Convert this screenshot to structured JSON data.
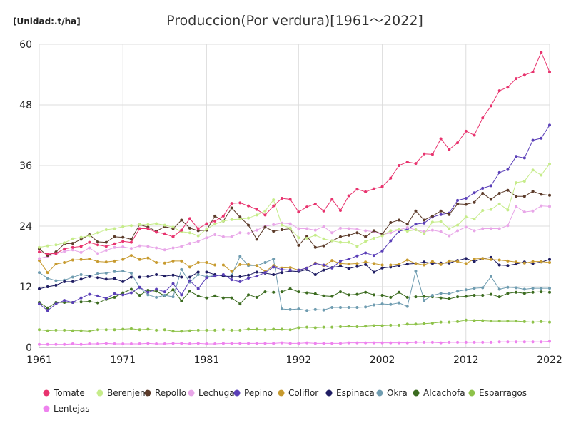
{
  "chart_data": {
    "type": "line",
    "title": "Produccion(Por verdura)[1961～2022]",
    "unit_label": "[Unidad:.t/ha]",
    "xlabel": "",
    "ylabel": "",
    "xlim": [
      1961,
      2022
    ],
    "ylim": [
      0,
      60
    ],
    "x_ticks": [
      1961,
      1971,
      1981,
      1992,
      2002,
      2012,
      2022
    ],
    "y_ticks": [
      0,
      12,
      24,
      36,
      48,
      60
    ],
    "grid": true,
    "legend_position": "bottom",
    "x": [
      1961,
      1962,
      1963,
      1964,
      1965,
      1966,
      1967,
      1968,
      1969,
      1970,
      1971,
      1972,
      1973,
      1974,
      1975,
      1976,
      1977,
      1978,
      1979,
      1980,
      1981,
      1982,
      1983,
      1984,
      1985,
      1986,
      1987,
      1988,
      1989,
      1990,
      1991,
      1992,
      1993,
      1994,
      1995,
      1996,
      1997,
      1998,
      1999,
      2000,
      2001,
      2002,
      2003,
      2004,
      2005,
      2006,
      2007,
      2008,
      2009,
      2010,
      2011,
      2012,
      2013,
      2014,
      2015,
      2016,
      2017,
      2018,
      2019,
      2020,
      2021,
      2022
    ],
    "series": [
      {
        "name": "Tomate",
        "color": "#e8336e",
        "values": [
          18.9,
          18.5,
          18.6,
          19.5,
          19.8,
          20.0,
          20.8,
          20.3,
          20.0,
          20.5,
          21.0,
          20.8,
          23.5,
          23.5,
          22.8,
          22.5,
          21.9,
          23.2,
          25.5,
          23.5,
          24.5,
          25.0,
          26.0,
          28.5,
          28.6,
          28.0,
          27.3,
          26.2,
          28.0,
          29.5,
          29.3,
          26.8,
          27.8,
          28.4,
          27.0,
          29.3,
          27.1,
          30.0,
          31.3,
          30.8,
          31.4,
          31.8,
          33.5,
          36.0,
          36.7,
          36.4,
          38.3,
          38.2,
          41.3,
          39.2,
          40.5,
          42.8,
          42.0,
          45.4,
          47.8,
          50.8,
          51.5,
          53.2,
          53.9,
          54.5,
          58.4,
          54.5
        ]
      },
      {
        "name": "Berenjena",
        "color": "#c6ec8a",
        "values": [
          19.8,
          20.1,
          20.3,
          20.7,
          21.5,
          21.8,
          22.1,
          22.7,
          23.3,
          23.5,
          23.9,
          24.1,
          24.3,
          24.3,
          24.5,
          24.2,
          23.8,
          22.9,
          22.7,
          22.1,
          23.4,
          24.4,
          25.0,
          25.3,
          25.4,
          25.6,
          26.2,
          27.0,
          29.2,
          24.2,
          23.6,
          21.7,
          21.6,
          22.2,
          21.5,
          21.1,
          20.8,
          20.8,
          20.0,
          21.0,
          21.6,
          22.1,
          23.1,
          23.4,
          23.0,
          23.3,
          22.5,
          24.8,
          24.9,
          23.5,
          24.2,
          25.8,
          25.4,
          27.1,
          27.3,
          28.4,
          27.2,
          32.6,
          32.9,
          35.1,
          34.1,
          36.3
        ]
      },
      {
        "name": "Repollo",
        "color": "#5c3b2a",
        "values": [
          19.5,
          18.2,
          18.9,
          20.5,
          20.6,
          21.4,
          22.3,
          20.9,
          20.8,
          21.9,
          21.8,
          21.4,
          24.3,
          23.8,
          23.0,
          23.9,
          23.5,
          25.2,
          23.6,
          23.1,
          23.2,
          26.0,
          25.0,
          27.6,
          25.8,
          24.2,
          21.4,
          23.8,
          23.0,
          23.3,
          23.5,
          20.2,
          22.0,
          19.8,
          20.1,
          21.1,
          21.9,
          22.2,
          22.7,
          21.9,
          23.1,
          22.4,
          24.7,
          25.2,
          24.4,
          27.0,
          25.2,
          26.0,
          27.0,
          26.3,
          28.4,
          28.3,
          28.7,
          30.5,
          29.3,
          30.5,
          31.1,
          29.9,
          29.9,
          30.9,
          30.3,
          30.1
        ]
      },
      {
        "name": "Lechuga",
        "color": "#e8a6e8",
        "values": [
          17.6,
          18.0,
          18.5,
          19.0,
          19.3,
          18.8,
          19.7,
          18.6,
          19.2,
          19.8,
          19.9,
          19.6,
          20.1,
          20.0,
          19.7,
          19.3,
          19.7,
          20.0,
          20.6,
          21.0,
          21.7,
          22.3,
          21.9,
          21.9,
          22.7,
          22.6,
          23.2,
          24.0,
          24.3,
          24.6,
          24.5,
          23.5,
          23.5,
          23.2,
          23.9,
          22.7,
          23.6,
          23.5,
          23.4,
          23.1,
          22.9,
          22.3,
          22.7,
          23.3,
          23.7,
          23.3,
          22.9,
          23.2,
          22.9,
          22.1,
          23.1,
          23.8,
          23.1,
          23.5,
          23.5,
          23.5,
          24.1,
          27.9,
          26.8,
          27.0,
          28.0,
          27.9
        ]
      },
      {
        "name": "Pepino",
        "color": "#5a3fb8",
        "values": [
          8.6,
          7.3,
          8.6,
          9.3,
          8.9,
          9.8,
          10.5,
          10.2,
          9.7,
          10.6,
          10.4,
          10.8,
          11.9,
          10.9,
          11.5,
          11.0,
          12.6,
          10.4,
          13.2,
          11.6,
          13.8,
          14.1,
          14.4,
          13.4,
          13.0,
          13.7,
          14.1,
          14.8,
          15.9,
          15.4,
          15.3,
          15.3,
          15.7,
          16.6,
          16.3,
          15.7,
          17.1,
          17.5,
          18.1,
          18.7,
          18.2,
          19.1,
          21.1,
          23.0,
          23.4,
          24.4,
          24.6,
          25.8,
          26.3,
          26.6,
          29.1,
          29.5,
          30.6,
          31.5,
          32.0,
          34.6,
          35.2,
          37.8,
          37.5,
          41.0,
          41.4,
          44.0
        ]
      },
      {
        "name": "Coliflor",
        "color": "#c79a2e",
        "values": [
          17.2,
          14.8,
          16.5,
          16.8,
          17.3,
          17.4,
          17.5,
          17.0,
          16.9,
          17.1,
          17.4,
          18.2,
          17.4,
          17.7,
          16.8,
          16.7,
          17.1,
          17.1,
          15.9,
          16.8,
          16.8,
          16.3,
          16.3,
          15.0,
          16.4,
          16.4,
          16.2,
          15.0,
          16.2,
          15.7,
          15.8,
          15.3,
          15.7,
          16.7,
          16.1,
          17.2,
          16.6,
          16.5,
          16.6,
          16.9,
          16.6,
          16.3,
          16.3,
          16.5,
          17.3,
          16.6,
          16.3,
          17.0,
          16.4,
          17.1,
          17.0,
          16.6,
          17.5,
          17.6,
          17.4,
          17.3,
          17.1,
          16.9,
          16.7,
          17.0,
          17.0,
          16.8
        ]
      },
      {
        "name": "Espinaca",
        "color": "#1f1d63",
        "values": [
          11.6,
          12.0,
          12.3,
          13.0,
          13.0,
          13.5,
          14.0,
          13.8,
          13.5,
          13.6,
          13.0,
          13.9,
          13.9,
          14.0,
          14.4,
          14.1,
          14.3,
          13.9,
          13.9,
          14.9,
          14.9,
          14.4,
          14.1,
          14.0,
          14.0,
          14.3,
          14.9,
          14.7,
          14.4,
          14.8,
          15.1,
          15.0,
          15.4,
          14.4,
          15.3,
          15.8,
          16.1,
          15.6,
          16.0,
          16.4,
          14.9,
          15.7,
          15.9,
          16.2,
          16.5,
          16.6,
          16.9,
          16.6,
          16.7,
          16.7,
          17.2,
          17.6,
          17.0,
          17.6,
          17.8,
          16.3,
          16.2,
          16.5,
          16.9,
          16.6,
          16.9,
          17.4
        ]
      },
      {
        "name": "Okra",
        "color": "#6f9cb0",
        "values": [
          14.8,
          13.7,
          13.2,
          13.3,
          13.9,
          14.4,
          14.1,
          14.6,
          14.7,
          15.0,
          15.1,
          14.7,
          11.8,
          10.4,
          9.9,
          10.3,
          10.0,
          15.4,
          12.9,
          14.4,
          14.0,
          14.2,
          14.3,
          14.3,
          18.0,
          16.2,
          16.2,
          16.8,
          17.5,
          7.6,
          7.5,
          7.6,
          7.3,
          7.5,
          7.4,
          7.9,
          7.9,
          7.9,
          7.9,
          8.0,
          8.4,
          8.6,
          8.5,
          8.8,
          8.1,
          15.1,
          9.3,
          10.3,
          10.7,
          10.6,
          11.1,
          11.4,
          11.7,
          11.8,
          14.0,
          11.5,
          11.9,
          11.8,
          11.5,
          11.7,
          11.7,
          11.7
        ]
      },
      {
        "name": "Alcachofa",
        "color": "#3b6b1f",
        "values": [
          8.9,
          7.8,
          8.9,
          8.9,
          8.9,
          9.0,
          9.1,
          8.8,
          9.5,
          9.9,
          10.8,
          11.5,
          10.3,
          11.3,
          11.1,
          10.2,
          11.4,
          9.2,
          11.1,
          10.2,
          9.8,
          10.2,
          9.8,
          9.8,
          8.6,
          10.4,
          9.9,
          11.0,
          10.9,
          11.0,
          11.6,
          11.0,
          10.8,
          10.6,
          10.2,
          10.1,
          11.0,
          10.4,
          10.5,
          10.9,
          10.4,
          10.3,
          9.9,
          10.9,
          9.9,
          10.0,
          10.1,
          10.0,
          9.8,
          9.6,
          10.0,
          10.1,
          10.3,
          10.3,
          10.5,
          10.0,
          10.7,
          10.9,
          10.7,
          10.9,
          11.0,
          10.9
        ]
      },
      {
        "name": "Esparragos",
        "color": "#8ec24a",
        "values": [
          3.5,
          3.3,
          3.4,
          3.4,
          3.3,
          3.3,
          3.2,
          3.5,
          3.5,
          3.5,
          3.6,
          3.7,
          3.5,
          3.6,
          3.4,
          3.5,
          3.2,
          3.2,
          3.3,
          3.4,
          3.4,
          3.4,
          3.5,
          3.4,
          3.4,
          3.6,
          3.6,
          3.5,
          3.6,
          3.6,
          3.5,
          3.9,
          4.0,
          3.9,
          4.0,
          4.0,
          4.1,
          4.2,
          4.1,
          4.2,
          4.3,
          4.3,
          4.4,
          4.4,
          4.6,
          4.6,
          4.7,
          4.8,
          5.0,
          5.0,
          5.1,
          5.4,
          5.3,
          5.3,
          5.2,
          5.2,
          5.2,
          5.2,
          5.1,
          5.0,
          5.1,
          5.0
        ]
      },
      {
        "name": "Lentejas",
        "color": "#ee82ee",
        "values": [
          0.6,
          0.6,
          0.6,
          0.6,
          0.7,
          0.6,
          0.7,
          0.7,
          0.8,
          0.7,
          0.7,
          0.7,
          0.7,
          0.8,
          0.7,
          0.7,
          0.8,
          0.8,
          0.7,
          0.8,
          0.7,
          0.7,
          0.8,
          0.8,
          0.8,
          0.8,
          0.8,
          0.8,
          0.8,
          0.9,
          0.8,
          0.8,
          0.9,
          0.8,
          0.8,
          0.8,
          0.8,
          0.9,
          0.9,
          0.9,
          0.9,
          0.9,
          0.9,
          0.9,
          0.9,
          1.0,
          1.0,
          1.0,
          0.9,
          1.0,
          1.0,
          1.0,
          1.0,
          1.0,
          1.0,
          1.1,
          1.1,
          1.1,
          1.1,
          1.1,
          1.1,
          1.2
        ]
      }
    ]
  }
}
